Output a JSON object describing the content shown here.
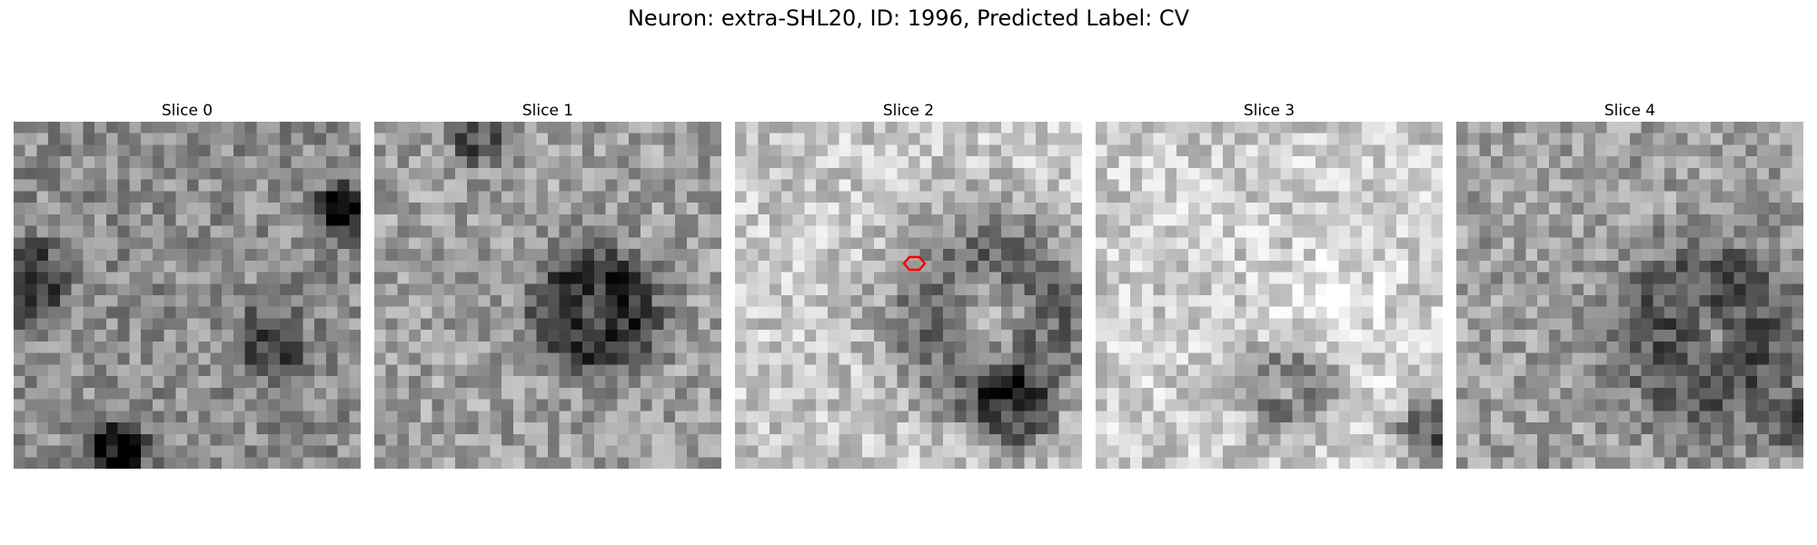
{
  "figure": {
    "suptitle": "Neuron: extra-SHL20, ID: 1996, Predicted Label: CV"
  },
  "panels": [
    {
      "title": "Slice 0",
      "seed": 11,
      "brightness": 0.55,
      "features": [
        [
          0.93,
          0.24,
          0.05,
          -0.55
        ],
        [
          0.28,
          0.93,
          0.06,
          -0.6
        ],
        [
          0.02,
          0.45,
          0.1,
          -0.35
        ],
        [
          0.72,
          0.62,
          0.08,
          -0.3
        ]
      ]
    },
    {
      "title": "Slice 1",
      "seed": 23,
      "brightness": 0.62,
      "features": [
        [
          0.62,
          0.53,
          0.16,
          -0.45
        ],
        [
          0.28,
          0.03,
          0.06,
          -0.3
        ]
      ]
    },
    {
      "title": "Slice 2",
      "seed": 37,
      "brightness": 0.78,
      "features": [
        [
          0.7,
          0.55,
          0.2,
          0.18
        ],
        [
          0.72,
          0.55,
          0.27,
          -0.45
        ],
        [
          0.78,
          0.82,
          0.1,
          -0.35
        ]
      ]
    },
    {
      "title": "Slice 3",
      "seed": 49,
      "brightness": 0.8,
      "features": [
        [
          0.68,
          0.55,
          0.17,
          0.1
        ],
        [
          0.55,
          0.75,
          0.12,
          -0.3
        ],
        [
          0.95,
          0.87,
          0.07,
          -0.5
        ]
      ]
    },
    {
      "title": "Slice 4",
      "seed": 61,
      "brightness": 0.62,
      "features": [
        [
          0.72,
          0.6,
          0.25,
          -0.3
        ],
        [
          0.98,
          0.86,
          0.06,
          -0.4
        ]
      ]
    }
  ],
  "marker": {
    "panel_index": 2,
    "color": "#ff0000"
  }
}
